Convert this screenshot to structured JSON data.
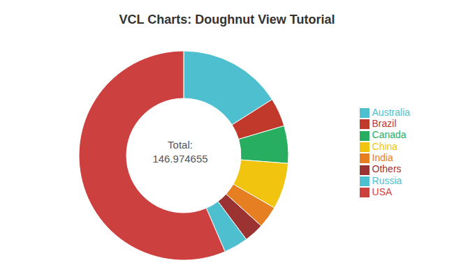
{
  "chart_data": {
    "type": "pie",
    "title": "VCL Charts: Doughnut View Tutorial",
    "categories": [
      "Australia",
      "Brazil",
      "Canada",
      "China",
      "India",
      "Others",
      "Russia",
      "USA"
    ],
    "values": [
      23.5,
      6.5,
      8.5,
      10.5,
      5.0,
      4.5,
      5.5,
      82.974655
    ],
    "colors": [
      "#4dbfcf",
      "#c0392b",
      "#27ae60",
      "#f1c40f",
      "#e67e22",
      "#9b3333",
      "#4dbfcf",
      "#cd4040"
    ],
    "annotations": [
      "Total:",
      "146.974655"
    ],
    "legend": "right"
  }
}
